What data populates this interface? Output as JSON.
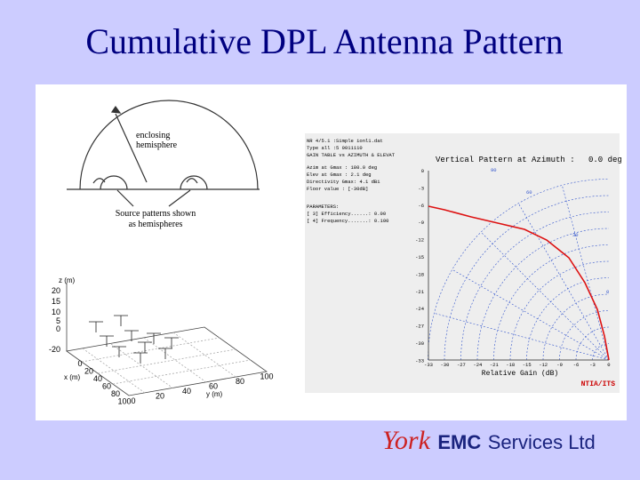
{
  "title": "Cumulative DPL Antenna Pattern",
  "hemisphere_diagram": {
    "enclosing_label": [
      "enclosing",
      "hemisphere"
    ],
    "source_label": [
      "Source patterns shown",
      "as hemispheres"
    ]
  },
  "array_plot": {
    "z_label": "z (m)",
    "z_ticks": [
      "20",
      "15",
      "10",
      "5",
      "0",
      "-20"
    ],
    "x_label": "x (m)",
    "x_ticks": [
      "0",
      "20",
      "40",
      "60",
      "80",
      "100"
    ],
    "y_label": "y (m)",
    "y_ticks": [
      "0",
      "20",
      "40",
      "60",
      "80",
      "100"
    ]
  },
  "pattern_plot": {
    "header_lines": [
      "NR 4/5.1        :Simple  ionl1.dat",
      "Type all        :5 0011110",
      "GAIN TABLE vs AZIMUTH & ELEVAT",
      "Azim at Gmax :  180.0 deg",
      "Elev at Gmax :    2.1 deg",
      "Directivity Gmax:  4.1 dBi",
      "Floor value  : [-30dB]",
      "PARAMETERS:",
      "[ 3] Efficiency......: 0.00",
      "[ 4] Frequency.......: 0.100"
    ],
    "title": "Vertical Pattern at Azimuth :",
    "azimuth": "0.0 deg",
    "y_ticks": [
      "0",
      "-3",
      "-6",
      "-9",
      "-12",
      "-15",
      "-18",
      "-21",
      "-24",
      "-27",
      "-30",
      "-33"
    ],
    "x_ticks": [
      "-33",
      "-30",
      "-27",
      "-24",
      "-21",
      "-18",
      "-15",
      "-12",
      "-9",
      "-6",
      "-3",
      "0"
    ],
    "angle_labels": [
      "90",
      "60",
      "30",
      "0"
    ],
    "x_label": "Relative Gain (dB)",
    "credit": "NTIA/ITS"
  },
  "logo": {
    "script": "York",
    "brand": "EMC",
    "rest": "Services Ltd"
  }
}
